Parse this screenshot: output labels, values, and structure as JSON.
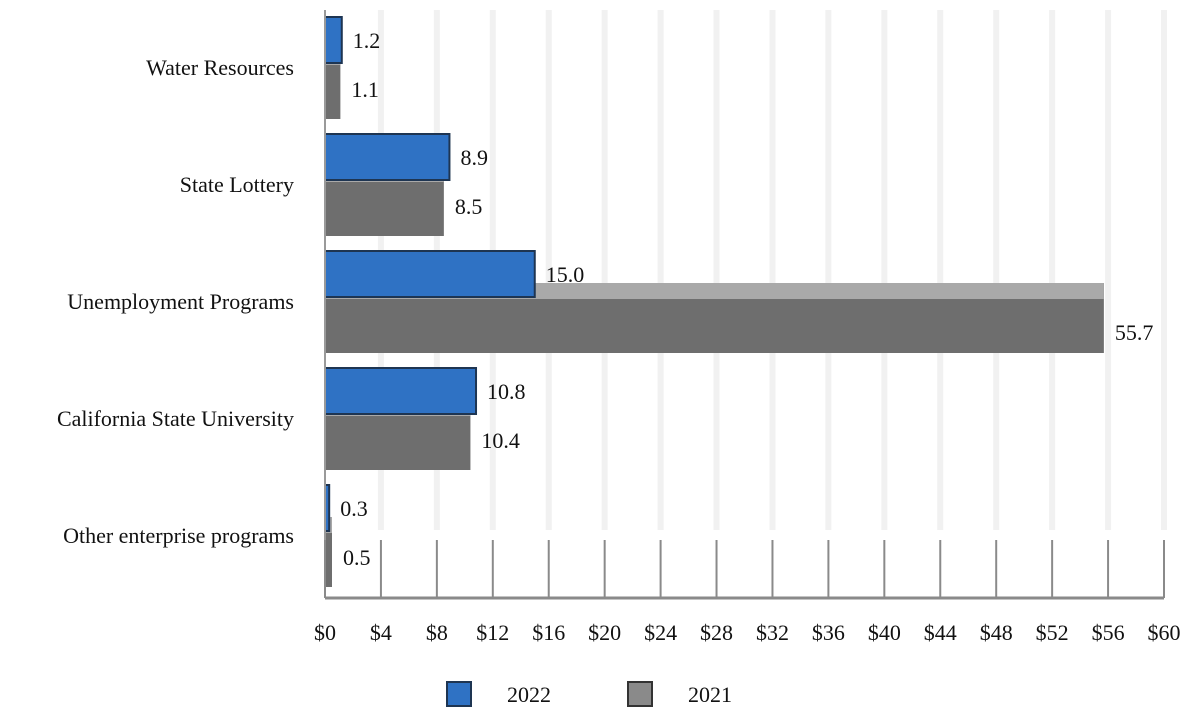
{
  "chart_data": {
    "type": "bar",
    "orientation": "horizontal",
    "categories": [
      "Water Resources",
      "State Lottery",
      "Unemployment Programs",
      "California State University",
      "Other enterprise programs"
    ],
    "series": [
      {
        "name": "2022",
        "values": [
          1.2,
          8.9,
          15.0,
          10.8,
          0.3
        ],
        "value_labels": [
          "1.2",
          "8.9",
          "15.0",
          "10.8",
          "0.3"
        ],
        "color": "#2f72c4"
      },
      {
        "name": "2021",
        "values": [
          1.1,
          8.5,
          55.7,
          10.4,
          0.5
        ],
        "value_labels": [
          "1.1",
          "8.5",
          "55.7",
          "10.4",
          "0.5"
        ],
        "color": "#6e6e6e"
      }
    ],
    "xlim": [
      0,
      60
    ],
    "x_ticks": [
      0,
      4,
      8,
      12,
      16,
      20,
      24,
      28,
      32,
      36,
      40,
      44,
      48,
      52,
      56,
      60
    ],
    "x_tick_labels": [
      "$0",
      "$4",
      "$8",
      "$12",
      "$16",
      "$20",
      "$24",
      "$28",
      "$32",
      "$36",
      "$40",
      "$44",
      "$48",
      "$52",
      "$56",
      "$60"
    ],
    "title": "",
    "xlabel": "",
    "ylabel": "",
    "grid": true,
    "legend_position": "bottom"
  }
}
